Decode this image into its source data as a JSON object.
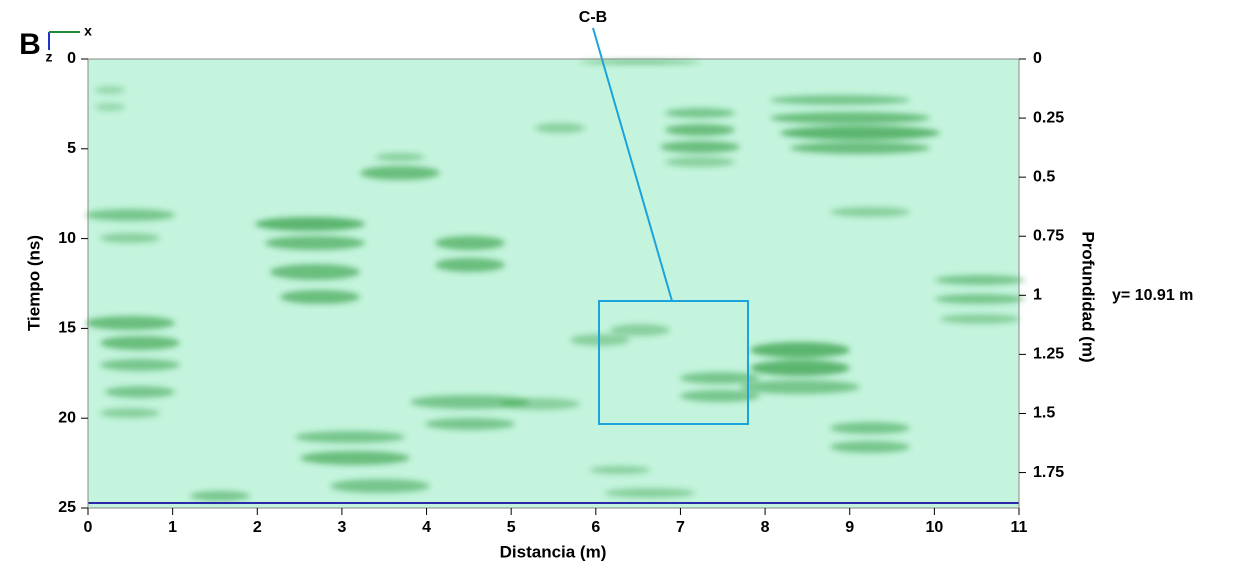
{
  "chart_data": {
    "type": "radargram",
    "panel_label": "B",
    "axis_glyph_x": "x",
    "axis_glyph_z": "z",
    "annotation": "C-B",
    "side_label": "y= 10.91  m",
    "xlabel": "Distancia (m)",
    "ylabel": "Tiempo (ns)",
    "y2label": "Profundidad (m)",
    "xlim": [
      0,
      11
    ],
    "xticks": [
      0,
      1,
      2,
      3,
      4,
      5,
      6,
      7,
      8,
      9,
      10,
      11
    ],
    "ylim": [
      25,
      0
    ],
    "yticks": [
      0,
      5,
      10,
      15,
      20,
      25
    ],
    "y2lim": [
      1.9,
      0
    ],
    "y2ticks": [
      0,
      0.25,
      0.5,
      0.75,
      1,
      1.25,
      1.5,
      1.75
    ],
    "background_color": "#c4f4dd"
  }
}
